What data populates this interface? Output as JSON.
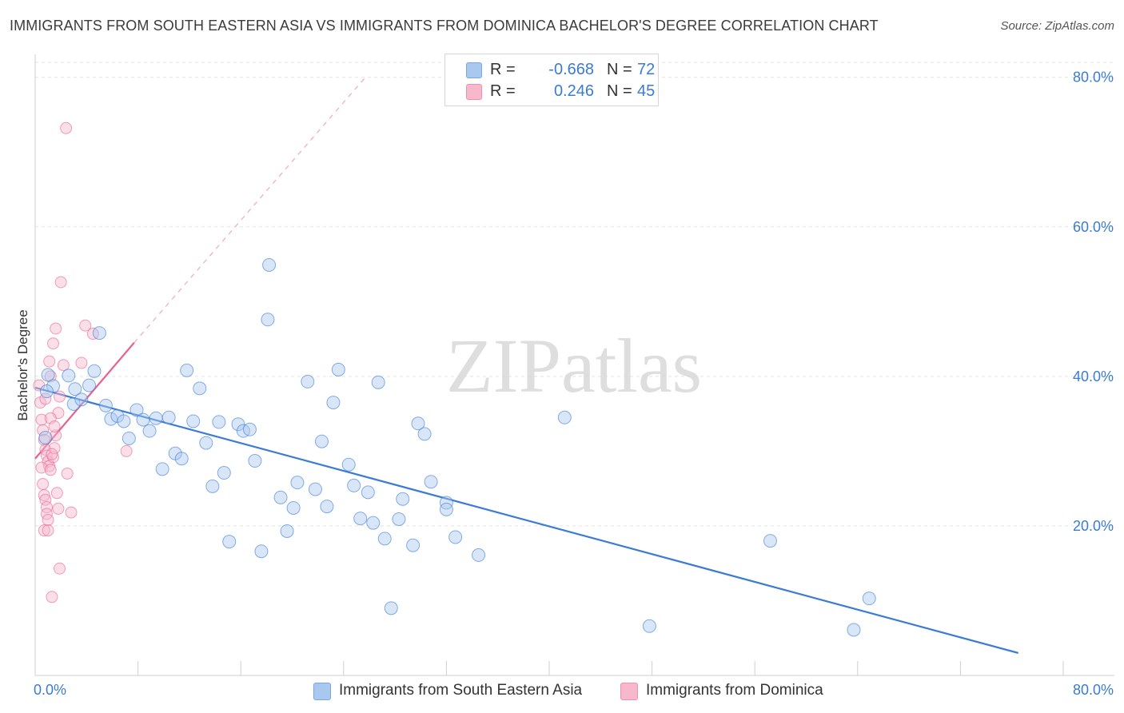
{
  "title": "IMMIGRANTS FROM SOUTH EASTERN ASIA VS IMMIGRANTS FROM DOMINICA BACHELOR'S DEGREE CORRELATION CHART",
  "source": "Source: ZipAtlas.com",
  "watermark": "ZIPatlas",
  "colors": {
    "blue": "#3a7bd5",
    "blue_fill": "#a9c8f0",
    "pink": "#e8628f",
    "pink_fill": "#f7b8cb",
    "grid": "#e3e3e3",
    "axis_label": "#3a7bd5"
  },
  "legend_top": {
    "rows": [
      {
        "label": "R =",
        "r": "-0.668",
        "n_label": "N =",
        "n": "72",
        "color": "blue"
      },
      {
        "label": "R =",
        "r": "0.246",
        "n_label": "N =",
        "n": "45",
        "color": "pink"
      }
    ]
  },
  "legend_bottom": {
    "items": [
      {
        "label": "Immigrants from South Eastern Asia",
        "color": "blue"
      },
      {
        "label": "Immigrants from Dominica",
        "color": "pink"
      }
    ]
  },
  "chart_data": {
    "type": "scatter",
    "title": "IMMIGRANTS FROM SOUTH EASTERN ASIA VS IMMIGRANTS FROM DOMINICA BACHELOR'S DEGREE CORRELATION CHART",
    "xlabel": "",
    "ylabel": "Bachelor's Degree",
    "xlim": [
      0,
      80
    ],
    "ylim": [
      0,
      82
    ],
    "x_tick_labels": [
      "0.0%",
      "80.0%"
    ],
    "y_ticks": [
      20,
      40,
      60,
      80
    ],
    "y_tick_labels": [
      "20.0%",
      "40.0%",
      "60.0%",
      "80.0%"
    ],
    "grid": true,
    "legend_position": "bottom",
    "series": [
      {
        "name": "Immigrants from South Eastern Asia",
        "color": "blue",
        "trend": {
          "x0": 0,
          "y0": 38.5,
          "x1": 76.5,
          "y1": 3.0
        },
        "points": [
          [
            1.0,
            40.2
          ],
          [
            1.4,
            38.7
          ],
          [
            0.9,
            38.0
          ],
          [
            2.6,
            40.1
          ],
          [
            3.1,
            38.3
          ],
          [
            3.0,
            36.3
          ],
          [
            3.6,
            36.9
          ],
          [
            4.2,
            38.8
          ],
          [
            4.6,
            40.7
          ],
          [
            5.0,
            45.8
          ],
          [
            5.5,
            36.1
          ],
          [
            5.9,
            34.3
          ],
          [
            6.4,
            34.7
          ],
          [
            6.9,
            34.0
          ],
          [
            7.3,
            31.7
          ],
          [
            7.9,
            35.5
          ],
          [
            8.4,
            34.2
          ],
          [
            8.9,
            32.7
          ],
          [
            9.4,
            34.4
          ],
          [
            9.9,
            27.6
          ],
          [
            10.4,
            34.5
          ],
          [
            10.9,
            29.7
          ],
          [
            11.4,
            29.0
          ],
          [
            11.8,
            40.8
          ],
          [
            12.3,
            34.0
          ],
          [
            12.8,
            38.4
          ],
          [
            13.3,
            31.1
          ],
          [
            13.8,
            25.3
          ],
          [
            14.3,
            33.9
          ],
          [
            14.7,
            27.1
          ],
          [
            15.1,
            17.9
          ],
          [
            15.8,
            33.6
          ],
          [
            16.2,
            32.7
          ],
          [
            16.7,
            32.9
          ],
          [
            17.1,
            28.7
          ],
          [
            17.6,
            16.6
          ],
          [
            18.2,
            54.9
          ],
          [
            18.1,
            47.6
          ],
          [
            19.1,
            23.8
          ],
          [
            19.6,
            19.3
          ],
          [
            20.1,
            22.4
          ],
          [
            20.4,
            25.8
          ],
          [
            21.2,
            39.3
          ],
          [
            21.8,
            24.9
          ],
          [
            22.3,
            31.3
          ],
          [
            22.7,
            22.6
          ],
          [
            23.2,
            36.5
          ],
          [
            23.6,
            40.9
          ],
          [
            24.4,
            28.2
          ],
          [
            24.8,
            25.4
          ],
          [
            25.3,
            21.0
          ],
          [
            25.9,
            24.5
          ],
          [
            26.3,
            20.4
          ],
          [
            26.7,
            39.2
          ],
          [
            27.2,
            18.3
          ],
          [
            27.7,
            9.0
          ],
          [
            28.3,
            20.9
          ],
          [
            28.6,
            23.6
          ],
          [
            29.4,
            17.4
          ],
          [
            29.8,
            33.7
          ],
          [
            30.3,
            32.3
          ],
          [
            30.8,
            25.9
          ],
          [
            32.0,
            23.1
          ],
          [
            32.0,
            22.2
          ],
          [
            32.7,
            18.5
          ],
          [
            34.5,
            16.1
          ],
          [
            41.2,
            34.5
          ],
          [
            47.8,
            6.6
          ],
          [
            57.2,
            18.0
          ],
          [
            64.9,
            10.3
          ],
          [
            63.7,
            6.1
          ],
          [
            0.8,
            31.8
          ]
        ]
      },
      {
        "name": "Immigrants from Dominica",
        "color": "pink",
        "trend": {
          "x0": 0,
          "y0": 29.0,
          "x1": 7.7,
          "y1": 44.5,
          "ext_x1": 25.7,
          "ext_y1": 80.0
        },
        "points": [
          [
            0.3,
            38.8
          ],
          [
            0.4,
            36.5
          ],
          [
            0.5,
            34.2
          ],
          [
            0.6,
            32.8
          ],
          [
            0.7,
            31.5
          ],
          [
            0.8,
            30.2
          ],
          [
            0.9,
            29.4
          ],
          [
            1.0,
            28.6
          ],
          [
            1.1,
            28.0
          ],
          [
            0.5,
            27.8
          ],
          [
            0.6,
            25.6
          ],
          [
            0.7,
            24.1
          ],
          [
            0.8,
            23.5
          ],
          [
            0.9,
            22.5
          ],
          [
            0.9,
            21.6
          ],
          [
            1.0,
            20.8
          ],
          [
            0.7,
            19.4
          ],
          [
            1.0,
            19.4
          ],
          [
            1.2,
            27.5
          ],
          [
            1.4,
            29.2
          ],
          [
            1.5,
            30.4
          ],
          [
            1.6,
            32.1
          ],
          [
            1.8,
            35.1
          ],
          [
            1.9,
            37.3
          ],
          [
            1.2,
            40.0
          ],
          [
            1.4,
            44.4
          ],
          [
            1.6,
            46.4
          ],
          [
            1.7,
            24.4
          ],
          [
            1.8,
            22.3
          ],
          [
            1.9,
            14.3
          ],
          [
            2.0,
            52.6
          ],
          [
            2.2,
            41.5
          ],
          [
            2.4,
            73.2
          ],
          [
            2.5,
            27.0
          ],
          [
            2.8,
            21.8
          ],
          [
            3.9,
            46.8
          ],
          [
            4.5,
            45.7
          ],
          [
            3.6,
            41.8
          ],
          [
            1.3,
            10.5
          ],
          [
            1.2,
            34.4
          ],
          [
            1.5,
            33.3
          ],
          [
            0.8,
            37.0
          ],
          [
            1.1,
            42.0
          ],
          [
            1.3,
            29.6
          ],
          [
            7.1,
            30.0
          ]
        ]
      }
    ]
  }
}
